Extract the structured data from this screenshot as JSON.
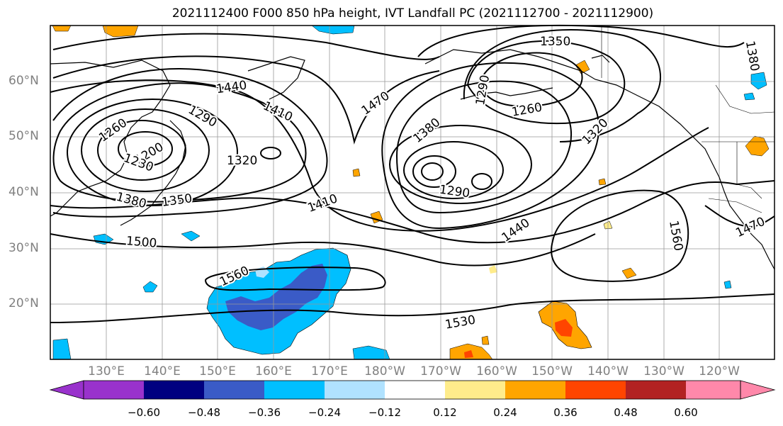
{
  "title": "2021112400 F000 850 hPa height, IVT Landfall PC (2021112700 - 2021112900)",
  "lat_labels": [
    "60°N",
    "50°N",
    "40°N",
    "30°N",
    "20°N"
  ],
  "lon_labels": [
    "130°E",
    "140°E",
    "150°E",
    "160°E",
    "170°E",
    "180°W",
    "170°W",
    "160°W",
    "150°W",
    "140°W",
    "130°W",
    "120°W"
  ],
  "contour_labels": [
    "1350",
    "1380",
    "1440",
    "1470",
    "1410",
    "1290",
    "1260",
    "1260",
    "1290",
    "1200",
    "1230",
    "1320",
    "1380",
    "1320",
    "1290",
    "1380",
    "1350",
    "1410",
    "1440",
    "1560",
    "1470",
    "1500",
    "1560",
    "1530"
  ],
  "colorbar": {
    "ticks": [
      "−0.60",
      "−0.48",
      "−0.36",
      "−0.24",
      "−0.12",
      "0.12",
      "0.24",
      "0.36",
      "0.48",
      "0.60"
    ],
    "colors": [
      "#9932cc",
      "#000080",
      "#3a5bc7",
      "#00bfff",
      "#b0e2ff",
      "#ffffff",
      "#ffec8b",
      "#ffa500",
      "#ff4500",
      "#b22222",
      "#ff88aa",
      "#ff88aa"
    ]
  }
}
